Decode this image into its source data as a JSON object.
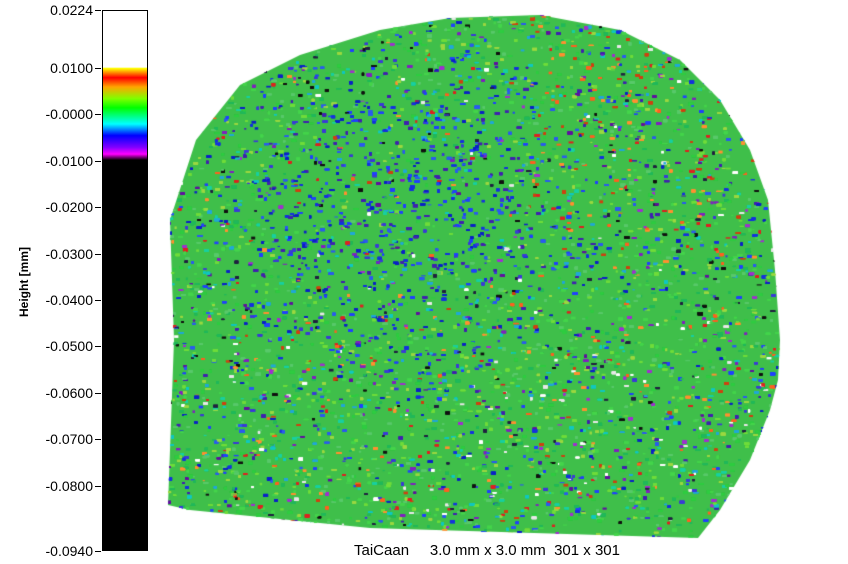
{
  "legend": {
    "axis_title": "Height [mm]",
    "ticks": [
      {
        "label": "0.0224",
        "value": 0.0224
      },
      {
        "label": "0.0100",
        "value": 0.01
      },
      {
        "label": "-0.0000",
        "value": 0.0
      },
      {
        "label": "-0.0100",
        "value": -0.01
      },
      {
        "label": "-0.0200",
        "value": -0.02
      },
      {
        "label": "-0.0300",
        "value": -0.03
      },
      {
        "label": "-0.0400",
        "value": -0.04
      },
      {
        "label": "-0.0500",
        "value": -0.05
      },
      {
        "label": "-0.0600",
        "value": -0.06
      },
      {
        "label": "-0.0700",
        "value": -0.07
      },
      {
        "label": "-0.0800",
        "value": -0.08
      },
      {
        "label": "-0.0940",
        "value": -0.094
      }
    ],
    "range": [
      -0.094,
      0.0224
    ],
    "colors": [
      "#ffffff",
      "#ffff00",
      "#ff8000",
      "#ff0000",
      "#ffa500",
      "#80ff00",
      "#00ff00",
      "#00ffff",
      "#0000ff",
      "#8000ff",
      "#ff00ff",
      "#000000"
    ]
  },
  "footer": {
    "name": "TaiCaan",
    "size": "3.0 mm x 3.0 mm",
    "resolution": "301 x 301"
  }
}
